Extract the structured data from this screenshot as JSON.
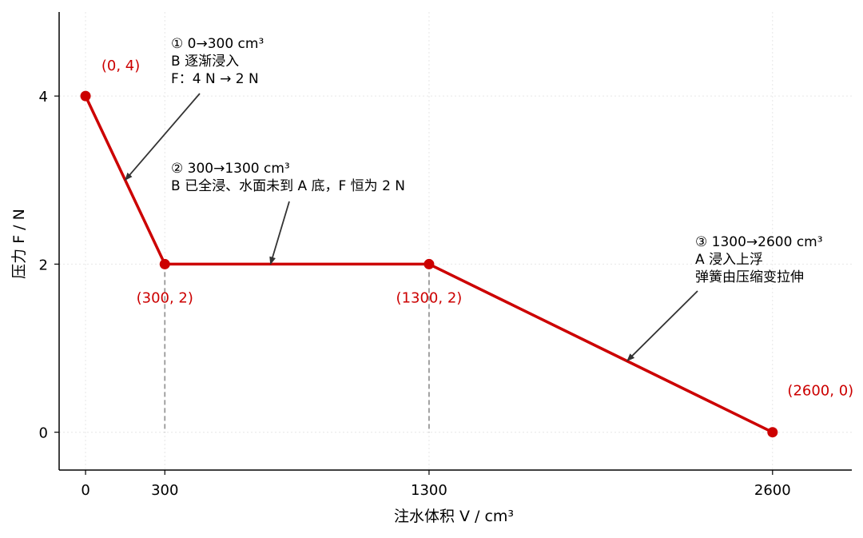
{
  "chart_data": {
    "type": "line",
    "xlabel": "注水体积 V / cm³",
    "ylabel": "压力 F / N",
    "xlim": [
      -100,
      2900
    ],
    "ylim": [
      -0.45,
      5.0
    ],
    "xticks": [
      0,
      300,
      1300,
      2600
    ],
    "yticks": [
      0,
      2,
      4
    ],
    "grid": true,
    "colors": {
      "line": "#cc0000",
      "annotation": "#333333",
      "guide": "#999999"
    },
    "series": [
      {
        "x": [
          0,
          300,
          1300,
          2600
        ],
        "y": [
          4,
          2,
          2,
          0
        ]
      }
    ],
    "point_labels": [
      "(0, 4)",
      "(300, 2)",
      "(1300, 2)",
      "(2600, 0)"
    ],
    "annotations": [
      {
        "lines": [
          "① 0→300 cm³",
          "B 逐渐浸入",
          "F：4 N → 2 N"
        ],
        "target": [
          150,
          3
        ]
      },
      {
        "lines": [
          "② 300→1300 cm³",
          "B 已全浸、水面未到 A 底，F 恒为 2 N"
        ],
        "target": [
          700,
          2
        ]
      },
      {
        "lines": [
          "③ 1300→2600 cm³",
          "A 浸入上浮",
          "弹簧由压缩变拉伸"
        ],
        "target": [
          2050,
          0.85
        ]
      }
    ]
  }
}
